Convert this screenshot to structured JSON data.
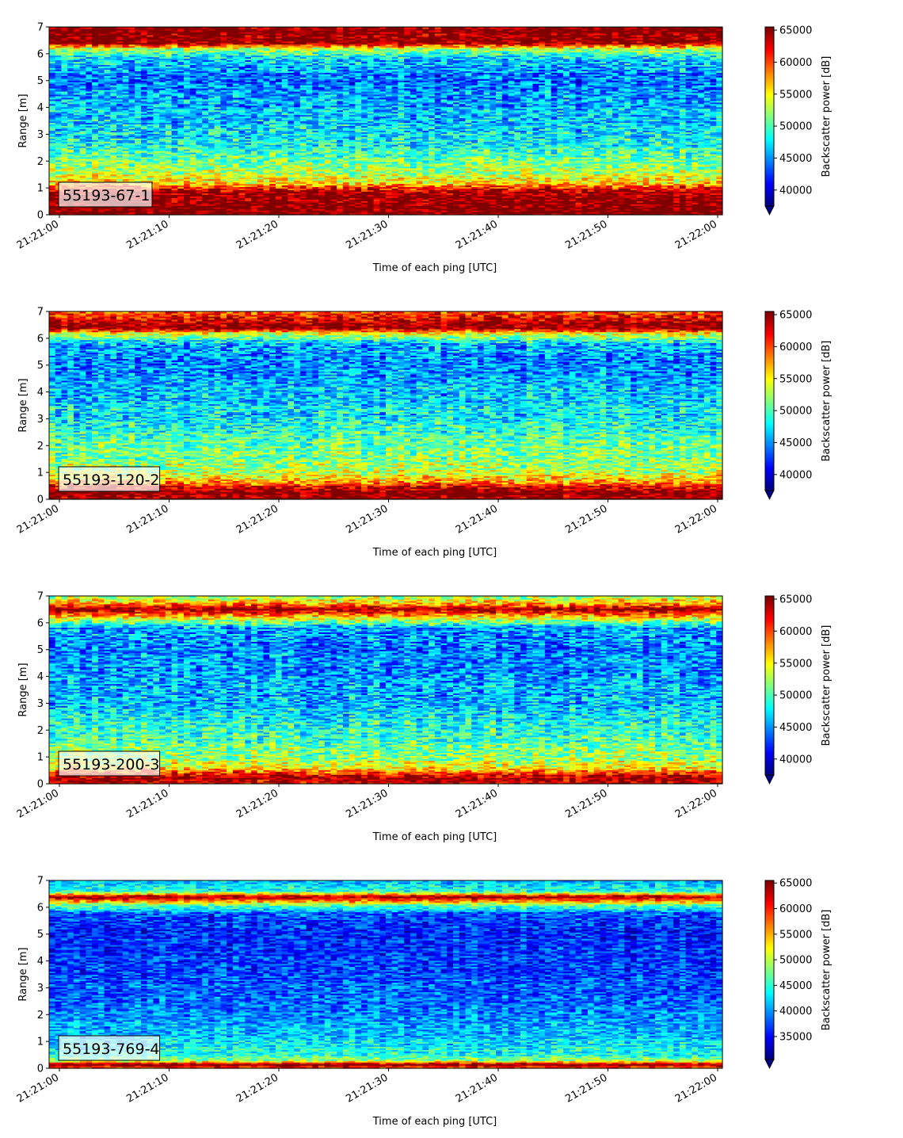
{
  "chart_data": [
    {
      "type": "heatmap",
      "label_box": "55193-67-1",
      "xlabel": "Time of each ping [UTC]",
      "ylabel": "Range [m]",
      "colorbar_label": "Backscatter power [dB]",
      "x_ticks": [
        "21:21:00",
        "21:21:10",
        "21:21:20",
        "21:21:30",
        "21:21:40",
        "21:21:50",
        "21:22:00"
      ],
      "y_ticks": [
        0,
        1,
        2,
        3,
        4,
        5,
        6,
        7
      ],
      "ylim": [
        0,
        7
      ],
      "time_range_s": [
        0,
        61
      ],
      "colorbar_ticks": [
        40000,
        45000,
        50000,
        55000,
        60000,
        65000
      ],
      "colorbar_range": [
        37500,
        65500
      ],
      "colormap": "jet",
      "colorbar_extend": "min",
      "profile": {
        "range_m": [
          0.0,
          0.25,
          0.5,
          0.8,
          1.0,
          1.2,
          1.5,
          2.0,
          2.5,
          3.0,
          4.0,
          5.0,
          5.8,
          6.2,
          6.4,
          6.6,
          7.0
        ],
        "power": [
          65500,
          65500,
          65500,
          65000,
          62000,
          55000,
          53500,
          51000,
          48500,
          47500,
          46000,
          44000,
          46500,
          53000,
          65000,
          65500,
          65500
        ]
      }
    },
    {
      "type": "heatmap",
      "label_box": "55193-120-2",
      "xlabel": "Time of each ping [UTC]",
      "ylabel": "Range [m]",
      "colorbar_label": "Backscatter power [dB]",
      "x_ticks": [
        "21:21:00",
        "21:21:10",
        "21:21:20",
        "21:21:30",
        "21:21:40",
        "21:21:50",
        "21:22:00"
      ],
      "y_ticks": [
        0,
        1,
        2,
        3,
        4,
        5,
        6,
        7
      ],
      "ylim": [
        0,
        7
      ],
      "time_range_s": [
        0,
        61
      ],
      "colorbar_ticks": [
        40000,
        45000,
        50000,
        55000,
        60000,
        65000
      ],
      "colorbar_range": [
        37500,
        65500
      ],
      "colormap": "jet",
      "colorbar_extend": "min",
      "profile": {
        "range_m": [
          0.0,
          0.3,
          0.5,
          0.7,
          1.0,
          1.5,
          2.0,
          2.5,
          3.0,
          4.0,
          5.0,
          5.8,
          6.2,
          6.4,
          6.8,
          7.0
        ],
        "power": [
          65500,
          65500,
          62000,
          57000,
          53500,
          52000,
          51000,
          49500,
          48000,
          46500,
          44500,
          46000,
          55000,
          65500,
          62000,
          60000
        ]
      }
    },
    {
      "type": "heatmap",
      "label_box": "55193-200-3",
      "xlabel": "Time of each ping [UTC]",
      "ylabel": "Range [m]",
      "colorbar_label": "Backscatter power [dB]",
      "x_ticks": [
        "21:21:00",
        "21:21:10",
        "21:21:20",
        "21:21:30",
        "21:21:40",
        "21:21:50",
        "21:22:00"
      ],
      "y_ticks": [
        0,
        1,
        2,
        3,
        4,
        5,
        6,
        7
      ],
      "ylim": [
        0,
        7
      ],
      "time_range_s": [
        0,
        61
      ],
      "colorbar_ticks": [
        40000,
        45000,
        50000,
        55000,
        60000,
        65000
      ],
      "colorbar_range": [
        37500,
        65500
      ],
      "colormap": "jet",
      "colorbar_extend": "min",
      "profile": {
        "range_m": [
          0.0,
          0.2,
          0.4,
          0.6,
          1.0,
          1.5,
          2.0,
          3.0,
          4.0,
          5.0,
          5.8,
          6.2,
          6.5,
          6.8,
          7.0
        ],
        "power": [
          62000,
          65500,
          61000,
          55000,
          52000,
          50500,
          49000,
          46500,
          45500,
          44500,
          45500,
          55000,
          65500,
          56000,
          52000
        ]
      }
    },
    {
      "type": "heatmap",
      "label_box": "55193-769-4",
      "xlabel": "Time of each ping [UTC]",
      "ylabel": "Range [m]",
      "colorbar_label": "Backscatter power [dB]",
      "x_ticks": [
        "21:21:00",
        "21:21:10",
        "21:21:20",
        "21:21:30",
        "21:21:40",
        "21:21:50",
        "21:22:00"
      ],
      "y_ticks": [
        0,
        1,
        2,
        3,
        4,
        5,
        6,
        7
      ],
      "ylim": [
        0,
        7
      ],
      "time_range_s": [
        0,
        61
      ],
      "colorbar_ticks": [
        35000,
        40000,
        45000,
        50000,
        55000,
        60000,
        65000
      ],
      "colorbar_range": [
        30500,
        65500
      ],
      "colormap": "jet",
      "colorbar_extend": "min",
      "profile": {
        "range_m": [
          0.0,
          0.15,
          0.3,
          0.5,
          1.0,
          1.5,
          2.0,
          3.0,
          4.0,
          5.0,
          5.8,
          6.1,
          6.4,
          6.6,
          7.0
        ],
        "power": [
          56000,
          65500,
          49000,
          45000,
          42500,
          41000,
          39500,
          38000,
          37000,
          36000,
          38000,
          48000,
          65500,
          45000,
          41000
        ]
      }
    }
  ]
}
